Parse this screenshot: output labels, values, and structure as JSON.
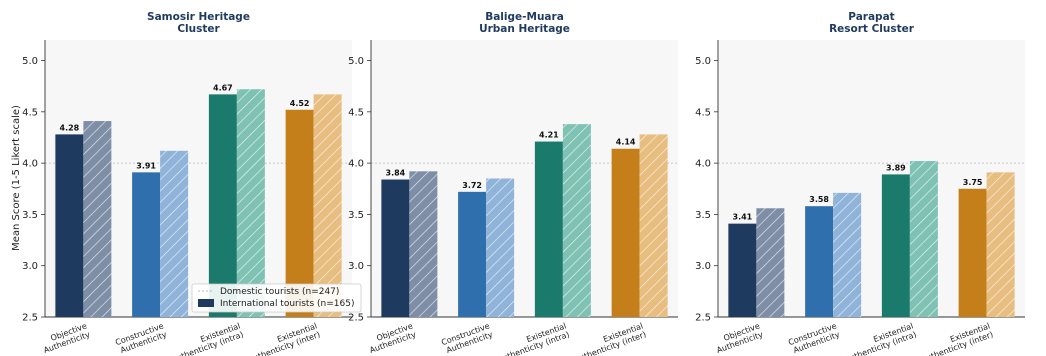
{
  "figure": {
    "ylabel": "Mean Score (1-5 Likert scale)",
    "legend": {
      "domestic": "Domestic tourists (n=247)",
      "international": "International tourists (n=165)"
    }
  },
  "colors": {
    "cat_base": [
      "#1f3a5f",
      "#2f6fad",
      "#1a7a6b",
      "#c47f1a"
    ],
    "cat_light": [
      "#7d8ea6",
      "#8fb3d9",
      "#7fc2b4",
      "#e7bd80"
    ],
    "plot_bg": "#f7f7f7",
    "title": "#1f3a5f",
    "reference_line": "#c8c8c8"
  },
  "chart_data": [
    {
      "type": "bar",
      "title": "Samosir Heritage\nCluster",
      "categories": [
        "Objective\nAuthenticity",
        "Constructive\nAuthenticity",
        "Existential\nAuthenticity (intra)",
        "Existential\nAuthenticity (inter)"
      ],
      "series": [
        {
          "name": "International tourists (n=165)",
          "values": [
            4.28,
            3.91,
            4.67,
            4.52
          ],
          "labeled": true
        },
        {
          "name": "Domestic tourists (n=247)",
          "values": [
            4.41,
            4.12,
            4.72,
            4.67
          ],
          "labeled": false
        }
      ],
      "ylim": [
        2.5,
        5.2
      ],
      "yticks": [
        "2.5",
        "3.0",
        "3.5",
        "4.0",
        "4.5",
        "5.0"
      ],
      "reference_line": 4.0,
      "legend_position": "lower-right"
    },
    {
      "type": "bar",
      "title": "Balige-Muara\nUrban Heritage",
      "categories": [
        "Objective\nAuthenticity",
        "Constructive\nAuthenticity",
        "Existential\nAuthenticity (intra)",
        "Existential\nAuthenticity (inter)"
      ],
      "series": [
        {
          "name": "International tourists (n=165)",
          "values": [
            3.84,
            3.72,
            4.21,
            4.14
          ],
          "labeled": true
        },
        {
          "name": "Domestic tourists (n=247)",
          "values": [
            3.92,
            3.85,
            4.38,
            4.28
          ],
          "labeled": false
        }
      ],
      "ylim": [
        2.5,
        5.2
      ],
      "yticks": [
        "2.5",
        "3.0",
        "3.5",
        "4.0",
        "4.5",
        "5.0"
      ],
      "reference_line": 4.0
    },
    {
      "type": "bar",
      "title": "Parapat\nResort Cluster",
      "categories": [
        "Objective\nAuthenticity",
        "Constructive\nAuthenticity",
        "Existential\nAuthenticity (intra)",
        "Existential\nAuthenticity (inter)"
      ],
      "series": [
        {
          "name": "International tourists (n=165)",
          "values": [
            3.41,
            3.58,
            3.89,
            3.75
          ],
          "labeled": true
        },
        {
          "name": "Domestic tourists (n=247)",
          "values": [
            3.56,
            3.71,
            4.02,
            3.91
          ],
          "labeled": false
        }
      ],
      "ylim": [
        2.5,
        5.2
      ],
      "yticks": [
        "2.5",
        "3.0",
        "3.5",
        "4.0",
        "4.5",
        "5.0"
      ],
      "reference_line": 4.0
    }
  ]
}
